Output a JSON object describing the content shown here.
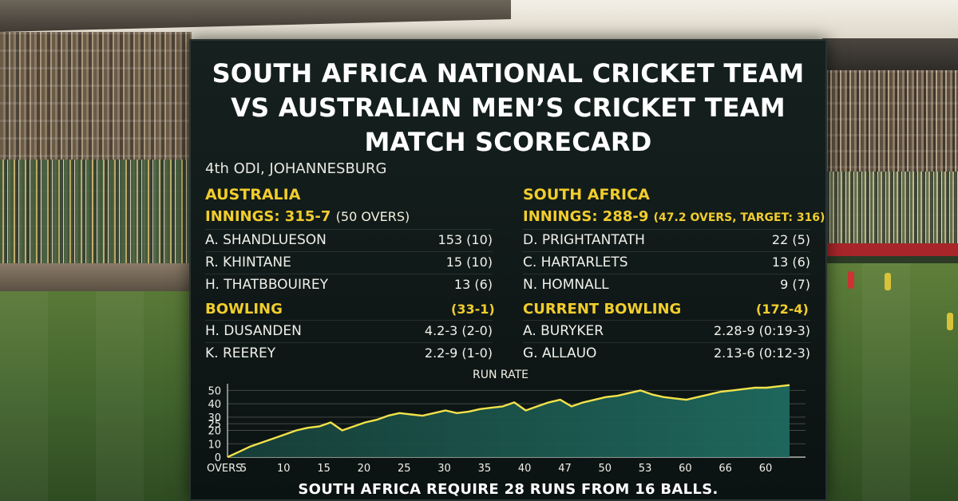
{
  "header": {
    "title_lines": [
      "SOUTH AFRICA NATIONAL CRICKET TEAM",
      "VS AUSTRALIAN MEN’S CRICKET TEAM",
      "MATCH SCORECARD"
    ],
    "venue": "4th ODI, JOHANNESBURG"
  },
  "australia": {
    "team": "AUSTRALIA",
    "innings_label": "INNINGS: 315-7",
    "innings_extra": "(50 OVERS)",
    "batters": [
      {
        "name": "A. SHANDLUESON",
        "score": "153 (10)"
      },
      {
        "name": "R. KHINTANE",
        "score": "15 (10)"
      },
      {
        "name": "H. THATBBOUIREY",
        "score": "13 (6)"
      }
    ],
    "bowling_label": "BOWLING",
    "bowling_value": "(33-1)",
    "bowlers": [
      {
        "name": "H. DUSANDEN",
        "figures": "4.2-3 (2-0)"
      },
      {
        "name": "K. REEREY",
        "figures": "2.2-9 (1-0)"
      }
    ]
  },
  "south_africa": {
    "team": "SOUTH AFRICA",
    "innings_label": "INNINGS: 288-9",
    "innings_extra": "(47.2 OVERS, TARGET: 316)",
    "batters": [
      {
        "name": "D. PRIGHTANTATH",
        "score": "22 (5)"
      },
      {
        "name": "C. HARTARLETS",
        "score": "13 (6)"
      },
      {
        "name": "N. HOMNALL",
        "score": "9 (7)"
      }
    ],
    "bowling_label": "CURRENT BOWLING",
    "bowling_value": "(172-4)",
    "bowlers": [
      {
        "name": "A. BURYKER",
        "figures": "2.28-9 (0:19-3)"
      },
      {
        "name": "G. ALLAUO",
        "figures": "2.13-6 (0:12-3)"
      }
    ]
  },
  "chart_data": {
    "type": "area",
    "title": "RUN RATE",
    "xlabel": "OVERS",
    "ylabel": "",
    "ylim": [
      0,
      55
    ],
    "yticks": [
      0,
      10,
      20,
      25,
      30,
      40,
      50
    ],
    "xtick_labels": [
      "5",
      "10",
      "15",
      "20",
      "25",
      "30",
      "35",
      "40",
      "47",
      "50",
      "53",
      "60",
      "66",
      "60"
    ],
    "series": [
      {
        "values": [
          0,
          4,
          8,
          11,
          14,
          17,
          20,
          22,
          23,
          26,
          20,
          23,
          26,
          28,
          31,
          33,
          32,
          31,
          33,
          35,
          33,
          34,
          36,
          37,
          38,
          41,
          35,
          38,
          41,
          43,
          38,
          41,
          43,
          45,
          46,
          48,
          50,
          47,
          45,
          44,
          43,
          45,
          47,
          49,
          50,
          51,
          52,
          52,
          53,
          54
        ]
      }
    ],
    "line_color": "#f2e24a",
    "fill_color": "#1f6a5f",
    "grid": true
  },
  "footer": "SOUTH AFRICA REQUIRE 28 RUNS FROM 16 BALLS."
}
